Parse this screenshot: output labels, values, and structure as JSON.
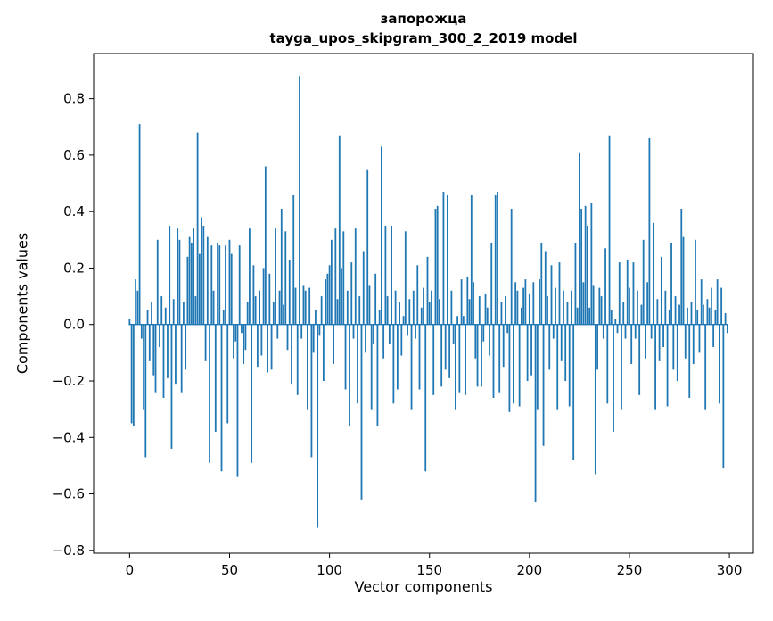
{
  "figure": {
    "title_line1": "запорожца",
    "title_line2": "tayga_upos_skipgram_300_2_2019 model",
    "xlabel": "Vector components",
    "ylabel": "Components values"
  },
  "chart_data": {
    "type": "bar",
    "title": "запорожца — tayga_upos_skipgram_300_2_2019 model",
    "xlabel": "Vector components",
    "ylabel": "Components values",
    "bar_color": "#1f77b4",
    "axis_color": "#000000",
    "background": "#ffffff",
    "grid": false,
    "legend": null,
    "xlim": [
      -18,
      312
    ],
    "ylim": [
      -0.81,
      0.96
    ],
    "xticks": [
      0,
      50,
      100,
      150,
      200,
      250,
      300
    ],
    "yticks": [
      -0.8,
      -0.6,
      -0.4,
      -0.2,
      0.0,
      0.2,
      0.4,
      0.6,
      0.8
    ],
    "ytick_labels": [
      "−0.8",
      "−0.6",
      "−0.4",
      "−0.2",
      "0.0",
      "0.2",
      "0.4",
      "0.6",
      "0.8"
    ],
    "n_components": 300,
    "values": [
      0.02,
      -0.35,
      -0.36,
      0.16,
      0.12,
      0.71,
      -0.05,
      -0.3,
      -0.47,
      0.05,
      -0.13,
      0.08,
      -0.18,
      -0.24,
      0.3,
      -0.08,
      0.1,
      -0.26,
      0.06,
      -0.19,
      0.35,
      -0.44,
      0.09,
      -0.21,
      0.34,
      0.3,
      -0.24,
      0.08,
      -0.16,
      0.24,
      0.31,
      0.29,
      0.34,
      0.1,
      0.68,
      0.25,
      0.38,
      0.35,
      -0.13,
      0.31,
      -0.49,
      0.28,
      0.12,
      -0.38,
      0.29,
      0.28,
      -0.52,
      0.05,
      0.28,
      -0.35,
      0.3,
      0.25,
      -0.12,
      -0.06,
      -0.54,
      0.28,
      -0.03,
      -0.14,
      -0.09,
      0.08,
      0.34,
      -0.49,
      0.21,
      0.1,
      -0.15,
      0.12,
      -0.11,
      0.2,
      0.56,
      -0.17,
      0.18,
      -0.16,
      0.08,
      0.34,
      -0.05,
      0.12,
      0.41,
      0.07,
      0.33,
      -0.09,
      0.23,
      -0.21,
      0.46,
      0.13,
      -0.25,
      0.88,
      -0.05,
      0.14,
      0.12,
      -0.3,
      0.13,
      -0.47,
      -0.1,
      0.05,
      -0.72,
      -0.04,
      0.1,
      -0.2,
      0.16,
      0.18,
      0.21,
      0.3,
      -0.14,
      0.34,
      0.09,
      0.67,
      0.2,
      0.33,
      -0.23,
      0.12,
      -0.36,
      0.22,
      -0.05,
      0.34,
      -0.28,
      0.1,
      -0.62,
      0.26,
      -0.1,
      0.55,
      0.14,
      -0.3,
      -0.07,
      0.18,
      -0.36,
      0.05,
      0.63,
      -0.12,
      0.35,
      0.1,
      -0.07,
      0.35,
      -0.28,
      0.12,
      -0.23,
      0.08,
      -0.11,
      0.03,
      0.33,
      -0.04,
      0.09,
      -0.3,
      0.12,
      -0.05,
      0.21,
      -0.23,
      0.06,
      0.13,
      -0.52,
      0.24,
      0.08,
      0.12,
      -0.25,
      0.41,
      0.42,
      0.09,
      -0.22,
      0.47,
      -0.16,
      0.46,
      -0.19,
      0.12,
      -0.07,
      -0.3,
      0.03,
      -0.24,
      0.16,
      0.03,
      -0.25,
      0.17,
      0.09,
      0.46,
      0.15,
      -0.12,
      -0.22,
      0.1,
      -0.22,
      -0.06,
      0.11,
      0.06,
      -0.11,
      0.29,
      -0.26,
      0.46,
      0.47,
      -0.24,
      0.08,
      -0.15,
      0.1,
      -0.03,
      -0.31,
      0.41,
      -0.28,
      0.15,
      0.12,
      -0.29,
      0.06,
      0.13,
      0.16,
      -0.2,
      0.11,
      -0.18,
      0.15,
      -0.63,
      -0.3,
      0.16,
      0.29,
      -0.43,
      0.26,
      0.1,
      -0.16,
      0.21,
      -0.05,
      0.13,
      -0.3,
      0.22,
      -0.13,
      0.12,
      -0.2,
      0.08,
      -0.29,
      0.12,
      -0.48,
      0.29,
      0.06,
      0.61,
      0.41,
      0.15,
      0.42,
      0.35,
      0.06,
      0.43,
      0.14,
      -0.53,
      -0.16,
      0.13,
      0.1,
      -0.05,
      0.27,
      -0.28,
      0.67,
      0.05,
      -0.38,
      0.02,
      -0.03,
      0.22,
      -0.3,
      0.08,
      -0.05,
      0.23,
      0.13,
      -0.14,
      0.22,
      -0.05,
      0.12,
      -0.25,
      0.07,
      0.3,
      -0.12,
      0.15,
      0.66,
      -0.05,
      0.36,
      -0.3,
      0.09,
      -0.13,
      0.24,
      -0.08,
      0.12,
      -0.29,
      0.05,
      0.29,
      -0.16,
      0.1,
      -0.2,
      0.07,
      0.41,
      0.31,
      -0.12,
      0.06,
      -0.26,
      0.08,
      -0.14,
      0.3,
      0.05,
      -0.1,
      0.16,
      0.07,
      -0.3,
      0.09,
      0.06,
      0.13,
      -0.08,
      0.05,
      0.16,
      -0.28,
      0.13,
      -0.51,
      0.04,
      -0.03
    ]
  }
}
